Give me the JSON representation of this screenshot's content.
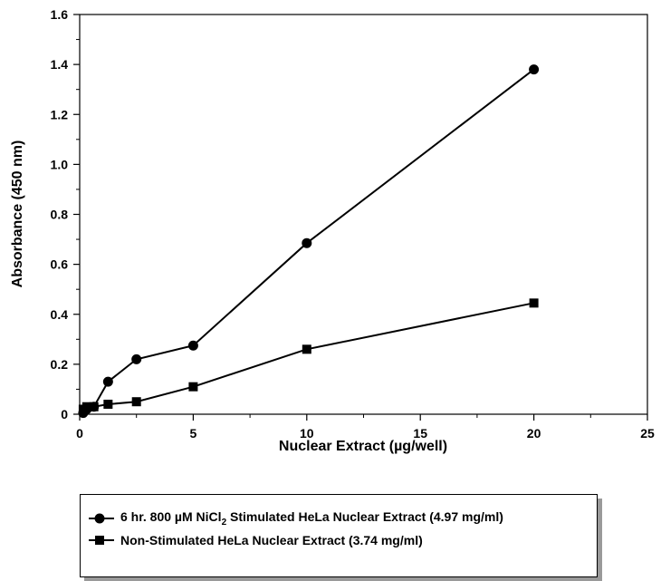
{
  "chart_data": {
    "type": "line",
    "xlabel": "Nuclear Extract (µg/well)",
    "ylabel": "Absorbance (450 nm)",
    "xlim": [
      0,
      25
    ],
    "ylim": [
      0,
      1.6
    ],
    "x_ticks": [
      "0",
      "5",
      "10",
      "15",
      "20",
      "25"
    ],
    "y_ticks": [
      "0",
      "0.2",
      "0.4",
      "0.6",
      "0.8",
      "1.0",
      "1.2",
      "1.4",
      "1.6"
    ],
    "x_tick_values": [
      0,
      5,
      10,
      15,
      20,
      25
    ],
    "y_tick_values": [
      0,
      0.2,
      0.4,
      0.6,
      0.8,
      1.0,
      1.2,
      1.4,
      1.6
    ],
    "grid": false,
    "legend_position": "bottom",
    "series": [
      {
        "name": "6 hr. 800 µM NiCl₂ Stimulated HeLa Nuclear Extract (4.97 mg/ml)",
        "marker": "circle",
        "color": "#000000",
        "x": [
          0.156,
          0.3125,
          0.625,
          1.25,
          2.5,
          5,
          10,
          20
        ],
        "y": [
          0.005,
          0.02,
          0.03,
          0.13,
          0.22,
          0.275,
          0.685,
          1.38
        ]
      },
      {
        "name": "Non-Stimulated HeLa Nuclear Extract (3.74 mg/ml)",
        "marker": "square",
        "color": "#000000",
        "x": [
          0.156,
          0.3125,
          0.625,
          1.25,
          2.5,
          5,
          10,
          20
        ],
        "y": [
          0.02,
          0.03,
          0.03,
          0.04,
          0.05,
          0.11,
          0.26,
          0.445
        ]
      }
    ]
  }
}
